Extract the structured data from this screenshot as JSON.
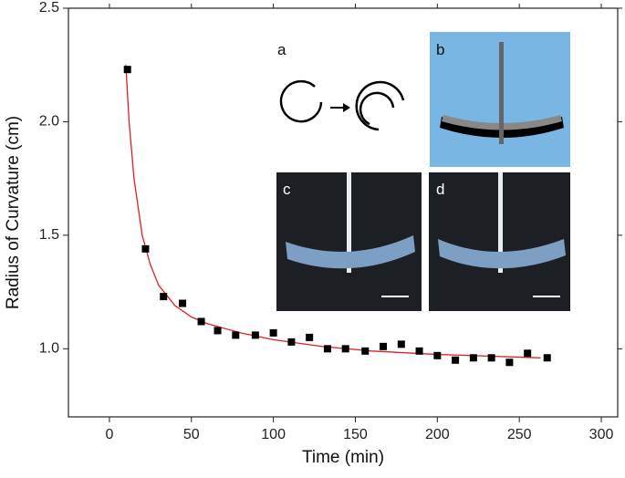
{
  "chart_data": {
    "type": "scatter",
    "x_label": "Time (min)",
    "y_label": "Radius of Curvature (cm)",
    "xlim": [
      -25,
      310
    ],
    "xticks": [
      0,
      50,
      100,
      150,
      200,
      250,
      300
    ],
    "ylim": [
      0.7,
      2.5
    ],
    "yticks": [
      {
        "value": 1,
        "label": "1.0"
      },
      1.5,
      {
        "value": 2,
        "label": "2.0"
      },
      2.5
    ],
    "series": [
      {
        "marker": "square",
        "color": "#000000",
        "x": [
          11,
          22,
          33,
          44.6,
          56,
          66,
          77,
          89,
          100,
          111,
          122,
          133,
          144,
          156,
          167,
          178,
          189,
          200,
          211,
          222,
          233,
          244,
          255,
          267
        ],
        "values": [
          2.23,
          1.44,
          1.23,
          1.2,
          1.12,
          1.08,
          1.06,
          1.06,
          1.07,
          1.03,
          1.05,
          1,
          1,
          0.99,
          1.01,
          1.02,
          0.99,
          0.97,
          0.95,
          0.96,
          0.96,
          0.94,
          0.98,
          0.96
        ]
      },
      {
        "marker": "line",
        "color": "#e02020",
        "x": [
          10,
          12,
          15,
          20,
          25,
          30,
          40,
          50,
          60,
          80,
          100,
          130,
          160,
          200,
          263
        ],
        "values": [
          2.25,
          2.0,
          1.75,
          1.5,
          1.37,
          1.28,
          1.19,
          1.14,
          1.11,
          1.07,
          1.04,
          1.01,
          0.99,
          0.975,
          0.96
        ]
      }
    ],
    "panel_labels": [
      "a",
      "b",
      "c",
      "d"
    ]
  }
}
